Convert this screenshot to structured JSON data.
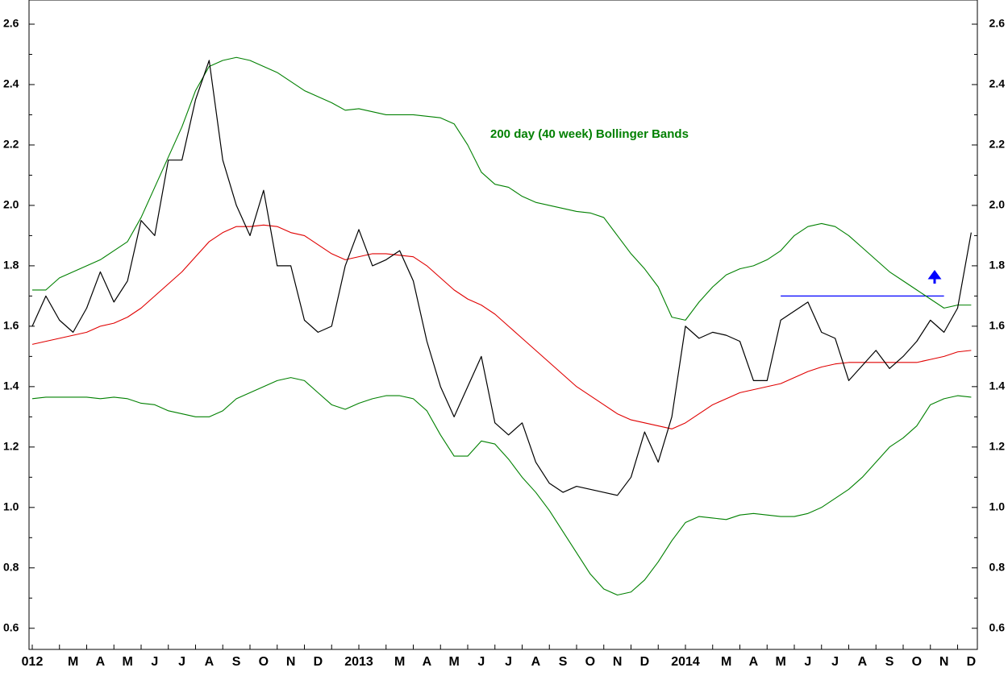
{
  "chart_data": {
    "type": "line",
    "annotation": "200 day (40 week) Bollinger Bands",
    "annotation_color": "#008000",
    "categories": [
      "012",
      null,
      null,
      "M",
      null,
      "A",
      null,
      "M",
      null,
      "J",
      null,
      "J",
      null,
      "A",
      null,
      "S",
      null,
      "O",
      null,
      "N",
      null,
      "D",
      null,
      null,
      "2013",
      null,
      null,
      "M",
      null,
      "A",
      null,
      "M",
      null,
      "J",
      null,
      "J",
      null,
      "A",
      null,
      "S",
      null,
      "O",
      null,
      "N",
      null,
      "D",
      null,
      null,
      "2014",
      null,
      null,
      "M",
      null,
      "A",
      null,
      "M",
      null,
      "J",
      null,
      "J",
      null,
      "A",
      null,
      "S",
      null,
      "O",
      null,
      "N",
      null,
      "D"
    ],
    "series": [
      {
        "color": "#008000",
        "values": [
          1.72,
          1.72,
          1.76,
          1.78,
          1.8,
          1.82,
          1.85,
          1.88,
          1.96,
          2.06,
          2.16,
          2.26,
          2.38,
          2.46,
          2.48,
          2.49,
          2.48,
          2.46,
          2.44,
          2.41,
          2.38,
          2.36,
          2.34,
          2.315,
          2.32,
          2.31,
          2.3,
          2.3,
          2.3,
          2.295,
          2.29,
          2.27,
          2.2,
          2.11,
          2.07,
          2.06,
          2.03,
          2.01,
          2.0,
          1.99,
          1.98,
          1.975,
          1.96,
          1.9,
          1.84,
          1.79,
          1.73,
          1.63,
          1.62,
          1.68,
          1.73,
          1.77,
          1.79,
          1.8,
          1.82,
          1.85,
          1.9,
          1.93,
          1.94,
          1.93,
          1.9,
          1.86,
          1.82,
          1.78,
          1.75,
          1.72,
          1.69,
          1.66,
          1.67,
          1.67
        ]
      },
      {
        "color": "#e00000",
        "values": [
          1.54,
          1.55,
          1.56,
          1.57,
          1.58,
          1.6,
          1.61,
          1.63,
          1.66,
          1.7,
          1.74,
          1.78,
          1.83,
          1.88,
          1.91,
          1.93,
          1.93,
          1.935,
          1.93,
          1.91,
          1.9,
          1.87,
          1.84,
          1.82,
          1.83,
          1.84,
          1.84,
          1.835,
          1.83,
          1.8,
          1.76,
          1.72,
          1.69,
          1.67,
          1.64,
          1.6,
          1.56,
          1.52,
          1.48,
          1.44,
          1.4,
          1.37,
          1.34,
          1.31,
          1.29,
          1.28,
          1.27,
          1.26,
          1.28,
          1.31,
          1.34,
          1.36,
          1.38,
          1.39,
          1.4,
          1.41,
          1.43,
          1.45,
          1.465,
          1.475,
          1.48,
          1.48,
          1.48,
          1.48,
          1.48,
          1.48,
          1.49,
          1.5,
          1.515,
          1.52
        ]
      },
      {
        "color": "#008000",
        "values": [
          1.36,
          1.365,
          1.365,
          1.365,
          1.365,
          1.36,
          1.365,
          1.36,
          1.345,
          1.34,
          1.32,
          1.31,
          1.3,
          1.3,
          1.32,
          1.36,
          1.38,
          1.4,
          1.42,
          1.43,
          1.42,
          1.38,
          1.34,
          1.325,
          1.345,
          1.36,
          1.37,
          1.37,
          1.36,
          1.32,
          1.24,
          1.17,
          1.17,
          1.22,
          1.21,
          1.16,
          1.1,
          1.05,
          0.99,
          0.92,
          0.85,
          0.78,
          0.73,
          0.71,
          0.72,
          0.76,
          0.82,
          0.89,
          0.95,
          0.97,
          0.965,
          0.96,
          0.975,
          0.98,
          0.975,
          0.97,
          0.97,
          0.98,
          1.0,
          1.03,
          1.06,
          1.1,
          1.15,
          1.2,
          1.23,
          1.27,
          1.34,
          1.36,
          1.37,
          1.365
        ]
      },
      {
        "color": "#000000",
        "values": [
          1.6,
          1.7,
          1.62,
          1.58,
          1.66,
          1.78,
          1.68,
          1.75,
          1.95,
          1.9,
          2.15,
          2.15,
          2.35,
          2.48,
          2.15,
          2.0,
          1.9,
          2.05,
          1.8,
          1.8,
          1.62,
          1.58,
          1.6,
          1.8,
          1.92,
          1.8,
          1.82,
          1.85,
          1.75,
          1.55,
          1.4,
          1.3,
          1.4,
          1.5,
          1.28,
          1.24,
          1.28,
          1.15,
          1.08,
          1.05,
          1.07,
          1.06,
          1.05,
          1.04,
          1.1,
          1.25,
          1.15,
          1.3,
          1.6,
          1.56,
          1.58,
          1.57,
          1.55,
          1.42,
          1.42,
          1.62,
          1.65,
          1.68,
          1.58,
          1.56,
          1.42,
          1.47,
          1.52,
          1.46,
          1.5,
          1.55,
          1.62,
          1.58,
          1.66,
          1.91
        ]
      }
    ],
    "hlines": [
      {
        "value": 1.7,
        "color": "#0000ff",
        "from": 55,
        "to": 67
      }
    ],
    "ylim": [
      0.53,
      2.68
    ],
    "yticks": [
      0.6,
      0.8,
      {
        "value": 1,
        "label": "1.0"
      },
      1.2,
      1.4,
      1.6,
      1.8,
      {
        "value": 2,
        "label": "2.0"
      },
      2.2,
      2.4,
      2.6
    ]
  }
}
